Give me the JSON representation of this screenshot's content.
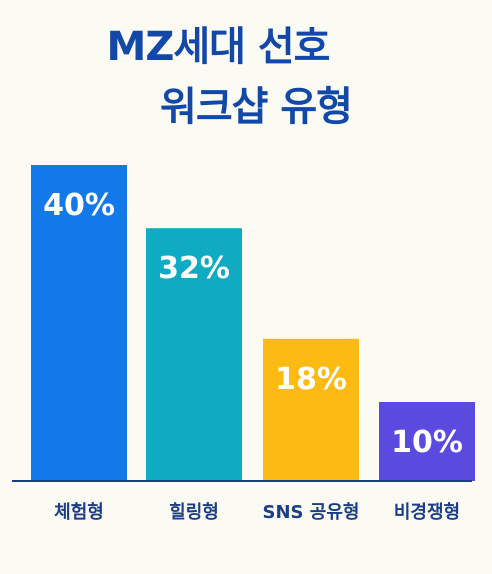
{
  "title_line1": "MZ세대 선호",
  "title_line2": "워크샵 유형",
  "colors": {
    "background": "#FBFAF3",
    "title": "#1248A8",
    "axis": "#1B3E86",
    "category_text": "#1B3E86"
  },
  "chart_data": {
    "type": "bar",
    "title": "MZ세대 선호 워크샵 유형",
    "categories": [
      "체험형",
      "힐링형",
      "SNS 공유형",
      "비경쟁형"
    ],
    "values": [
      40,
      32,
      18,
      10
    ],
    "value_labels": [
      "40%",
      "32%",
      "18%",
      "10%"
    ],
    "bar_colors": [
      "#1479E8",
      "#0EABC3",
      "#FDBA12",
      "#5B4ADF"
    ],
    "ylim": [
      0,
      40
    ],
    "xlabel": "",
    "ylabel": "",
    "grid": false,
    "legend": "none"
  }
}
